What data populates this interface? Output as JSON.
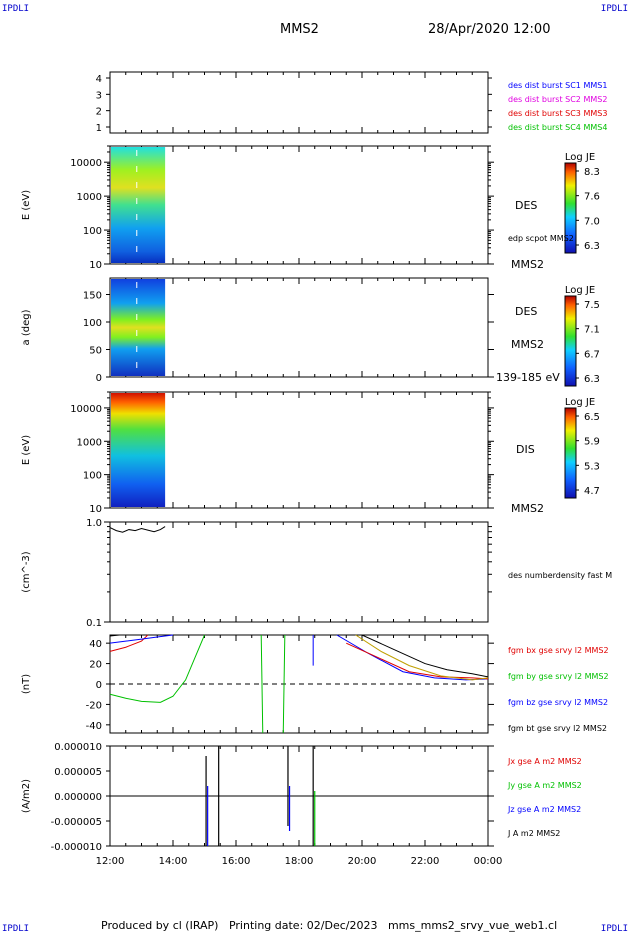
{
  "corners": {
    "tl": "IPDLI",
    "tr": "IPDLI",
    "bl": "IPDLI",
    "br": "IPDLI"
  },
  "header": {
    "title": "MMS2",
    "datetime": "28/Apr/2020 12:00"
  },
  "footer": "Produced by cl (IRAP)   Printing date: 02/Dec/2023   mms_mms2_srvy_vue_web1.cl",
  "x_ticks": [
    "12:00",
    "14:00",
    "16:00",
    "18:00",
    "20:00",
    "22:00",
    "00:00"
  ],
  "chart_data": [
    {
      "type": "line",
      "panel": "sc_list",
      "y_ticks": [
        "4",
        "3",
        "2",
        "1"
      ],
      "legend": [
        {
          "text": "des dist burst SC1 MMS1",
          "color": "#0000ff"
        },
        {
          "text": "des dist burst SC2 MMS2",
          "color": "#e000e0"
        },
        {
          "text": "des dist burst SC3 MMS3",
          "color": "#e00000"
        },
        {
          "text": "des dist burst SC4 MMS4",
          "color": "#00c000"
        }
      ]
    },
    {
      "type": "heatmap",
      "panel": "des_energy",
      "ylabel": "E (eV)",
      "y_ticks": [
        "10000",
        "1000",
        "100",
        "10"
      ],
      "yscale": "log",
      "ylim": [
        10,
        30000
      ],
      "x_range": [
        "12:00",
        "13:45"
      ],
      "label": "DES",
      "sublabel": "edp scpot MMS2",
      "sc_label": "MMS2",
      "colorbar": {
        "title": "Log JE",
        "ticks": [
          "8.3",
          "7.6",
          "7.0",
          "6.3"
        ]
      }
    },
    {
      "type": "heatmap",
      "panel": "des_pitch",
      "ylabel": "a (deg)",
      "y_ticks": [
        "150",
        "100",
        "50",
        "0"
      ],
      "ylim": [
        0,
        180
      ],
      "x_range": [
        "12:00",
        "13:45"
      ],
      "label": "DES",
      "sc_label": "MMS2",
      "energy_range": "139-185 eV",
      "colorbar": {
        "title": "Log JE",
        "ticks": [
          "7.5",
          "7.1",
          "6.7",
          "6.3"
        ]
      }
    },
    {
      "type": "heatmap",
      "panel": "dis_energy",
      "ylabel": "E (eV)",
      "y_ticks": [
        "10000",
        "1000",
        "100",
        "10"
      ],
      "yscale": "log",
      "ylim": [
        10,
        30000
      ],
      "x_range": [
        "12:00",
        "13:45"
      ],
      "label": "DIS",
      "sc_label": "MMS2",
      "colorbar": {
        "title": "Log JE",
        "ticks": [
          "6.5",
          "5.9",
          "5.3",
          "4.7"
        ]
      }
    },
    {
      "type": "line",
      "panel": "density",
      "ylabel": "(cm^-3)",
      "y_ticks": [
        "1.0",
        "0.1"
      ],
      "yscale": "log",
      "ylim": [
        0.1,
        1.0
      ],
      "series": [
        {
          "name": "des numberdensity fast M",
          "color": "#000000",
          "x": [
            12.0,
            12.2,
            12.4,
            12.6,
            12.8,
            13.0,
            13.2,
            13.4,
            13.6,
            13.75
          ],
          "y": [
            0.88,
            0.82,
            0.79,
            0.84,
            0.82,
            0.86,
            0.83,
            0.8,
            0.84,
            0.9
          ]
        }
      ]
    },
    {
      "type": "line",
      "panel": "fgm",
      "ylabel": "(nT)",
      "y_ticks": [
        "40",
        "20",
        "0",
        "-20",
        "-40"
      ],
      "ylim": [
        -48,
        48
      ],
      "series": [
        {
          "name": "fgm bx gse srvy l2 MMS2",
          "color": "#e00000"
        },
        {
          "name": "fgm by gse srvy l2 MMS2",
          "color": "#00c000"
        },
        {
          "name": "fgm bz gse srvy l2 MMS2",
          "color": "#0000ff"
        },
        {
          "name": "fgm bt gse srvy l2 MMS2",
          "color": "#000000"
        }
      ]
    },
    {
      "type": "line",
      "panel": "current",
      "ylabel": "(A/m2)",
      "y_ticks": [
        "0.000010",
        "0.000005",
        "0.000000",
        "-0.000005",
        "-0.000010"
      ],
      "ylim": [
        -1e-05,
        1e-05
      ],
      "series": [
        {
          "name": "Jx gse A m2 MMS2",
          "color": "#e00000"
        },
        {
          "name": "Jy gse A m2 MMS2",
          "color": "#00c000"
        },
        {
          "name": "Jz gse A m2 MMS2",
          "color": "#0000ff"
        },
        {
          "name": "J A m2 MMS2",
          "color": "#000000"
        }
      ]
    }
  ]
}
